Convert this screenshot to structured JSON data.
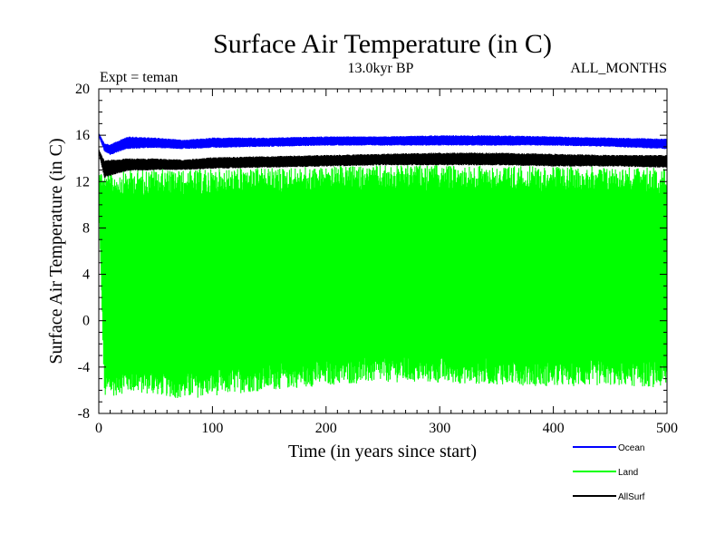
{
  "chart_data": {
    "type": "line",
    "title": "Surface Air Temperature (in C)",
    "subtitle_left": "Expt = teman",
    "subtitle_center": "13.0kyr BP",
    "subtitle_right": "ALL_MONTHS",
    "xlabel": "Time (in years since start)",
    "ylabel": "Surface Air Temperature (in C)",
    "xlim": [
      0,
      500
    ],
    "ylim": [
      -8,
      20
    ],
    "xticks": [
      0,
      100,
      200,
      300,
      400,
      500
    ],
    "yticks": [
      -8,
      -4,
      0,
      4,
      8,
      12,
      16,
      20
    ],
    "legend_position": "bottom-right",
    "series": [
      {
        "name": "Ocean",
        "color": "#0000ff",
        "description": "monthly values oscillating between about 15 and 16",
        "x": [
          0,
          5,
          10,
          25,
          50,
          75,
          100,
          150,
          200,
          250,
          300,
          350,
          400,
          450,
          500
        ],
        "low": [
          15.9,
          14.6,
          14.3,
          14.8,
          14.9,
          14.8,
          14.9,
          15.0,
          15.1,
          15.1,
          15.1,
          15.1,
          15.1,
          15.0,
          14.8
        ],
        "high": [
          16.2,
          15.3,
          15.2,
          15.9,
          15.8,
          15.6,
          15.8,
          15.8,
          15.9,
          15.9,
          16.0,
          16.0,
          15.9,
          15.8,
          15.7
        ]
      },
      {
        "name": "Land",
        "color": "#00ff00",
        "description": "monthly values oscillating between about -6 and 13",
        "x": [
          0,
          5,
          10,
          25,
          50,
          75,
          100,
          150,
          200,
          250,
          300,
          350,
          400,
          450,
          500
        ],
        "low": [
          10.5,
          -6.8,
          -6.6,
          -6.2,
          -6.4,
          -6.8,
          -6.5,
          -6.0,
          -5.6,
          -5.3,
          -5.4,
          -5.5,
          -5.7,
          -5.6,
          -5.8
        ],
        "high": [
          13.0,
          12.7,
          12.8,
          13.0,
          13.1,
          13.0,
          13.1,
          13.2,
          13.3,
          13.4,
          13.4,
          13.4,
          13.3,
          13.3,
          13.2
        ]
      },
      {
        "name": "AllSurf",
        "color": "#000000",
        "description": "monthly values oscillating between about 13 and 14.5",
        "x": [
          0,
          5,
          10,
          25,
          50,
          75,
          100,
          150,
          200,
          250,
          300,
          350,
          400,
          450,
          500
        ],
        "low": [
          14.5,
          12.3,
          12.5,
          12.9,
          13.0,
          13.0,
          13.1,
          13.2,
          13.3,
          13.4,
          13.4,
          13.4,
          13.3,
          13.3,
          13.2
        ],
        "high": [
          14.8,
          13.8,
          13.9,
          14.0,
          14.0,
          13.9,
          14.1,
          14.2,
          14.3,
          14.4,
          14.5,
          14.5,
          14.4,
          14.3,
          14.3
        ]
      }
    ]
  }
}
